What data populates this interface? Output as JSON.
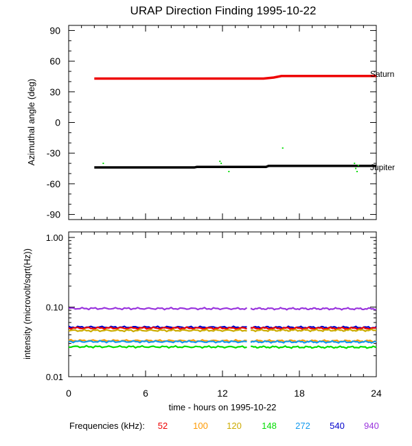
{
  "chart_data": [
    {
      "type": "line",
      "title": "URAP Direction Finding  1995-10-22",
      "xlabel": "time - hours on 1995-10-22",
      "ylabel": "Azimuthal angle (deg)",
      "xlim": [
        0,
        24
      ],
      "ylim": [
        -95,
        95
      ],
      "yticks": [
        {
          "value": 90,
          "label": "90"
        },
        {
          "value": 60,
          "label": "60"
        },
        {
          "value": 30,
          "label": "30"
        },
        {
          "value": 0,
          "label": "0"
        },
        {
          "value": -30,
          "label": "-30"
        },
        {
          "value": -60,
          "label": "-60"
        },
        {
          "value": -90,
          "label": "-90"
        }
      ],
      "series": [
        {
          "name": "Saturn",
          "label": "Saturn",
          "color": "#ee0000",
          "x": [
            2,
            15.2,
            16.0,
            16.6,
            24
          ],
          "y": [
            43,
            43,
            44,
            45.5,
            45.5
          ]
        },
        {
          "name": "Jupiter",
          "label": "Jupiter",
          "color": "#000000",
          "x": [
            2,
            9.8,
            10.0,
            15.4,
            15.6,
            24
          ],
          "y": [
            -44,
            -44,
            -43.5,
            -43.5,
            -42.5,
            -42.5
          ]
        }
      ],
      "scatter": {
        "color": "#00dd00",
        "x": [
          2.7,
          11.8,
          11.9,
          12.5,
          16.7,
          22.3,
          22.4,
          22.5,
          22.6
        ],
        "y": [
          -40,
          -38,
          -40,
          -48,
          -25,
          -40,
          -45,
          -48,
          -42
        ]
      }
    },
    {
      "type": "line",
      "ylabel": "intensity (microvolt/sqrt(Hz))",
      "yscale": "log",
      "xlim": [
        0,
        24
      ],
      "ylim": [
        0.01,
        1.2
      ],
      "xticks": [
        {
          "value": 0,
          "label": "0"
        },
        {
          "value": 6,
          "label": "6"
        },
        {
          "value": 12,
          "label": "12"
        },
        {
          "value": 18,
          "label": "18"
        },
        {
          "value": 24,
          "label": "24"
        }
      ],
      "yticks": [
        {
          "value": 1.0,
          "label": "1.00"
        },
        {
          "value": 0.1,
          "label": "0.10"
        },
        {
          "value": 0.01,
          "label": "0.01"
        }
      ],
      "gap": [
        13.9,
        14.2
      ],
      "series": [
        {
          "name": "940",
          "color": "#9933dd",
          "values": [
            0.0955,
            0.0945
          ]
        },
        {
          "name": "540",
          "color": "#0000cc",
          "values": [
            0.0515,
            0.051
          ]
        },
        {
          "name": "52",
          "color": "#ee0000",
          "values": [
            0.05,
            0.0495
          ]
        },
        {
          "name": "120",
          "color": "#ccaa00",
          "values": [
            0.046,
            0.0465
          ]
        },
        {
          "name": "100",
          "color": "#ff9900",
          "values": [
            0.033,
            0.0325
          ]
        },
        {
          "name": "272",
          "color": "#1199ee",
          "values": [
            0.032,
            0.0315
          ]
        },
        {
          "name": "148",
          "color": "#00dd00",
          "values": [
            0.027,
            0.0265
          ]
        }
      ]
    }
  ],
  "legend": {
    "label": "Frequencies (kHz):",
    "items": [
      {
        "text": "52",
        "color": "#ee0000"
      },
      {
        "text": "100",
        "color": "#ff9900"
      },
      {
        "text": "120",
        "color": "#ccaa00"
      },
      {
        "text": "148",
        "color": "#00dd00"
      },
      {
        "text": "272",
        "color": "#1199ee"
      },
      {
        "text": "540",
        "color": "#0000cc"
      },
      {
        "text": "940",
        "color": "#9933dd"
      }
    ]
  }
}
